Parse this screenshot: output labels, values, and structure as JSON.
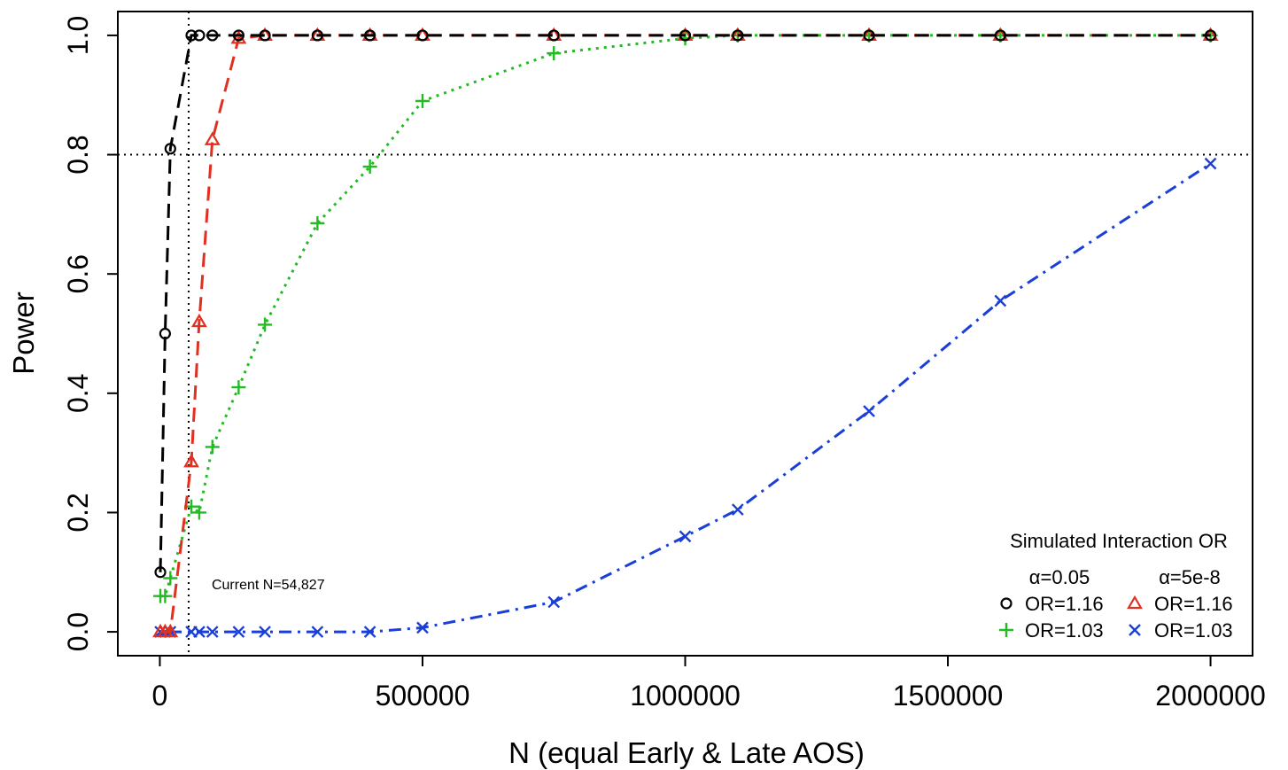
{
  "chart_data": {
    "type": "line",
    "title": "",
    "xlabel": "N (equal Early & Late AOS)",
    "ylabel": "Power",
    "xlim": [
      -80000,
      2080000
    ],
    "ylim": [
      -0.04,
      1.04
    ],
    "x_ticks": [
      0,
      500000,
      1000000,
      1500000,
      2000000
    ],
    "x_tick_labels": [
      "0",
      "500000",
      "1000000",
      "1500000",
      "2000000"
    ],
    "y_ticks": [
      0.0,
      0.2,
      0.4,
      0.6,
      0.8,
      1.0
    ],
    "y_tick_labels": [
      "0.0",
      "0.2",
      "0.4",
      "0.6",
      "0.8",
      "1.0"
    ],
    "grid": false,
    "reference_lines": {
      "horizontal": {
        "y": 0.8,
        "style": "dotted",
        "color": "#000000"
      },
      "vertical": {
        "x": 54827,
        "style": "dotted",
        "color": "#000000"
      }
    },
    "annotation": {
      "text": "Current N=54,827",
      "x": 54827,
      "y": 0.08
    },
    "legend": {
      "position": "bottom-right",
      "title": "Simulated Interaction OR",
      "col_headers": [
        "α=0.05",
        "α=5e-8"
      ],
      "entries": [
        "OR=1.16",
        "OR=1.16",
        "OR=1.03",
        "OR=1.03"
      ]
    },
    "series": [
      {
        "legend_label": "OR=1.16",
        "alpha": "α=0.05",
        "marker": "circle",
        "line": "dashed",
        "color": "#000000",
        "x": [
          1000,
          10000,
          20000,
          60000,
          75000,
          100000,
          150000,
          200000,
          300000,
          400000,
          500000,
          750000,
          1000000,
          1100000,
          1350000,
          1600000,
          2000000
        ],
        "y": [
          0.1,
          0.5,
          0.81,
          1.0,
          1.0,
          1.0,
          1.0,
          1.0,
          1.0,
          1.0,
          1.0,
          1.0,
          1.0,
          1.0,
          1.0,
          1.0,
          1.0
        ]
      },
      {
        "legend_label": "OR=1.16",
        "alpha": "α=5e-8",
        "marker": "triangle",
        "line": "dashed",
        "color": "#e03020",
        "x": [
          1000,
          10000,
          20000,
          60000,
          75000,
          100000,
          150000,
          200000,
          300000,
          400000,
          500000,
          750000,
          1000000,
          1100000,
          1350000,
          1600000,
          2000000
        ],
        "y": [
          0.0,
          0.0,
          0.0,
          0.285,
          0.52,
          0.825,
          0.995,
          1.0,
          1.0,
          1.0,
          1.0,
          1.0,
          1.0,
          1.0,
          1.0,
          1.0,
          1.0
        ]
      },
      {
        "legend_label": "OR=1.03",
        "alpha": "α=0.05",
        "marker": "plus",
        "line": "dotted",
        "color": "#22bb22",
        "x": [
          1000,
          10000,
          20000,
          60000,
          75000,
          100000,
          150000,
          200000,
          300000,
          400000,
          500000,
          750000,
          1000000,
          1100000,
          1350000,
          1600000,
          2000000
        ],
        "y": [
          0.06,
          0.06,
          0.09,
          0.21,
          0.2,
          0.31,
          0.41,
          0.515,
          0.685,
          0.78,
          0.89,
          0.97,
          0.995,
          1.0,
          1.0,
          1.0,
          1.0
        ]
      },
      {
        "legend_label": "OR=1.03",
        "alpha": "α=5e-8",
        "marker": "x",
        "line": "dotdash",
        "color": "#1a3fd8",
        "x": [
          1000,
          10000,
          20000,
          60000,
          75000,
          100000,
          150000,
          200000,
          300000,
          400000,
          500000,
          750000,
          1000000,
          1100000,
          1350000,
          1600000,
          2000000
        ],
        "y": [
          0.0,
          0.0,
          0.0,
          0.0,
          0.0,
          0.0,
          0.0,
          0.0,
          0.0,
          0.0,
          0.007,
          0.05,
          0.16,
          0.205,
          0.37,
          0.555,
          0.785
        ]
      }
    ]
  }
}
